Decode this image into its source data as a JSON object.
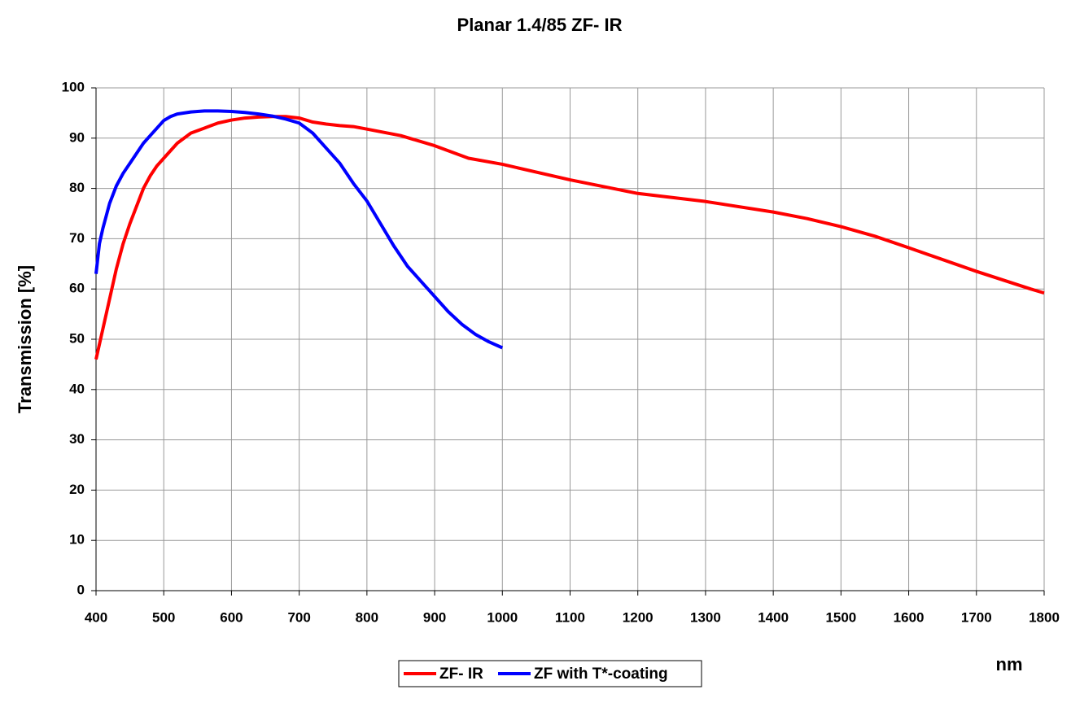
{
  "chart_data": {
    "type": "line",
    "title": "Planar 1.4/85 ZF- IR",
    "x_label": "nm",
    "y_label": "Transmission [%]",
    "xlim": [
      400,
      1800
    ],
    "xticks": [
      400,
      500,
      600,
      700,
      800,
      900,
      1000,
      1100,
      1200,
      1300,
      1400,
      1500,
      1600,
      1700,
      1800
    ],
    "ylim": [
      0,
      100
    ],
    "yticks": [
      0,
      10,
      20,
      30,
      40,
      50,
      60,
      70,
      80,
      90,
      100
    ],
    "grid": true,
    "legend": "bottom",
    "series": [
      {
        "name": "ZF- IR",
        "color": "#ff0000",
        "x": [
          400,
          410,
          420,
          430,
          440,
          450,
          460,
          470,
          480,
          490,
          500,
          520,
          540,
          560,
          580,
          600,
          620,
          640,
          660,
          680,
          700,
          720,
          740,
          760,
          780,
          800,
          850,
          900,
          950,
          1000,
          1100,
          1200,
          1300,
          1400,
          1450,
          1500,
          1550,
          1600,
          1700,
          1780,
          1800
        ],
        "values": [
          46,
          52,
          58,
          64,
          69,
          73,
          76.5,
          80,
          82.5,
          84.5,
          86,
          89,
          91,
          92,
          93,
          93.6,
          94,
          94.2,
          94.3,
          94.3,
          94,
          93.2,
          92.8,
          92.5,
          92.3,
          91.8,
          90.5,
          88.5,
          86,
          84.8,
          81.7,
          79,
          77.4,
          75.3,
          74,
          72.4,
          70.5,
          68.2,
          63.5,
          60,
          59.2
        ]
      },
      {
        "name": "ZF with T*-coating",
        "color": "#0000ff",
        "x": [
          400,
          405,
          410,
          420,
          430,
          440,
          450,
          460,
          470,
          480,
          490,
          500,
          510,
          520,
          540,
          560,
          580,
          600,
          620,
          640,
          660,
          680,
          700,
          720,
          740,
          760,
          780,
          800,
          820,
          840,
          860,
          880,
          900,
          920,
          940,
          960,
          980,
          1000
        ],
        "values": [
          63,
          69,
          72,
          77,
          80.5,
          83,
          85,
          87,
          89,
          90.5,
          92,
          93.5,
          94.3,
          94.8,
          95.2,
          95.4,
          95.4,
          95.3,
          95.1,
          94.8,
          94.4,
          93.8,
          93,
          91,
          88,
          85,
          81,
          77.5,
          73,
          68.5,
          64.5,
          61.5,
          58.5,
          55.5,
          53,
          51,
          49.5,
          48.3
        ]
      }
    ]
  }
}
